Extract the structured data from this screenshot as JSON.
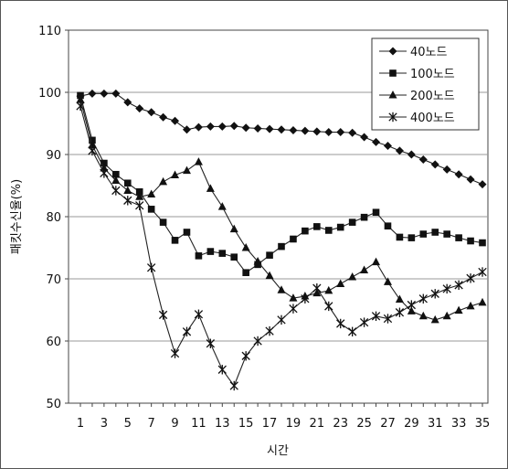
{
  "chart_data": {
    "type": "line",
    "title": "",
    "xlabel": "시간",
    "ylabel": "패킷수신율(%)",
    "xlim": [
      1,
      35
    ],
    "ylim": [
      50,
      110
    ],
    "grid": "horizontal",
    "legend_position": "top-right",
    "y_ticks": [
      "50",
      "60",
      "70",
      "80",
      "90",
      "100",
      "110"
    ],
    "x_ticks": [
      "1",
      "3",
      "5",
      "7",
      "9",
      "11",
      "13",
      "15",
      "17",
      "19",
      "21",
      "23",
      "25",
      "27",
      "29",
      "31",
      "33",
      "35"
    ],
    "x": [
      1,
      2,
      3,
      4,
      5,
      6,
      7,
      8,
      9,
      10,
      11,
      12,
      13,
      14,
      15,
      16,
      17,
      18,
      19,
      20,
      21,
      22,
      23,
      24,
      25,
      26,
      27,
      28,
      29,
      30,
      31,
      32,
      33,
      34,
      35
    ],
    "series": [
      {
        "name": "40노드",
        "marker": "diamond",
        "values": [
          99.4,
          99.8,
          99.8,
          99.8,
          98.4,
          97.4,
          96.8,
          96.0,
          95.4,
          94.0,
          94.4,
          94.5,
          94.5,
          94.6,
          94.3,
          94.2,
          94.1,
          94.0,
          93.9,
          93.8,
          93.7,
          93.6,
          93.6,
          93.5,
          92.8,
          92.0,
          91.4,
          90.6,
          90.0,
          89.2,
          88.4,
          87.6,
          86.8,
          86.0,
          85.2
        ]
      },
      {
        "name": "100노드",
        "marker": "square",
        "values": [
          99.5,
          92.3,
          88.6,
          86.8,
          85.4,
          84.0,
          81.2,
          79.1,
          76.2,
          77.5,
          73.7,
          74.4,
          74.1,
          73.5,
          71.0,
          72.3,
          73.8,
          75.2,
          76.4,
          77.7,
          78.4,
          77.8,
          78.3,
          79.1,
          79.9,
          80.7,
          78.5,
          76.7,
          76.6,
          77.2,
          77.5,
          77.2,
          76.6,
          76.1,
          75.8
        ]
      },
      {
        "name": "200노드",
        "marker": "triangle",
        "values": [
          98.8,
          91.5,
          87.8,
          85.8,
          84.2,
          83.2,
          83.6,
          85.6,
          86.7,
          87.4,
          88.8,
          84.5,
          81.6,
          78.0,
          75.0,
          72.8,
          70.5,
          68.2,
          66.9,
          67.2,
          67.7,
          68.1,
          69.2,
          70.3,
          71.4,
          72.7,
          69.5,
          66.7,
          64.8,
          64.0,
          63.4,
          64.0,
          64.9,
          65.6,
          66.2
        ]
      },
      {
        "name": "400노드",
        "marker": "star",
        "values": [
          97.8,
          90.6,
          87.0,
          84.2,
          82.6,
          81.8,
          71.8,
          64.2,
          58.0,
          61.5,
          64.3,
          59.6,
          55.4,
          52.8,
          57.6,
          60.0,
          61.6,
          63.4,
          65.2,
          66.8,
          68.5,
          65.6,
          62.8,
          61.5,
          63.0,
          64.0,
          63.6,
          64.6,
          65.8,
          66.8,
          67.6,
          68.4,
          69.0,
          70.1,
          71.1
        ]
      }
    ]
  }
}
